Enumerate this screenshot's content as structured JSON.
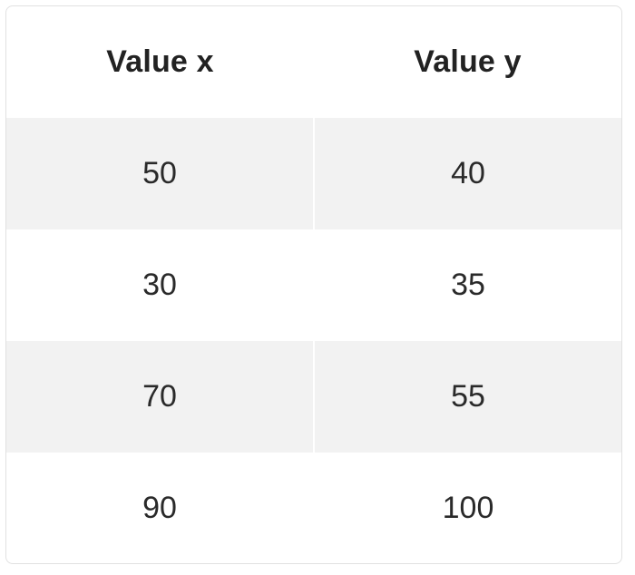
{
  "chart_data": {
    "type": "table",
    "columns": [
      "Value x",
      "Value y"
    ],
    "rows": [
      {
        "x": "50",
        "y": "40"
      },
      {
        "x": "30",
        "y": "35"
      },
      {
        "x": "70",
        "y": "55"
      },
      {
        "x": "90",
        "y": "100"
      }
    ]
  },
  "colors": {
    "row_shade": "#f2f2f2",
    "border": "#e1e1e1",
    "text": "#222222"
  }
}
